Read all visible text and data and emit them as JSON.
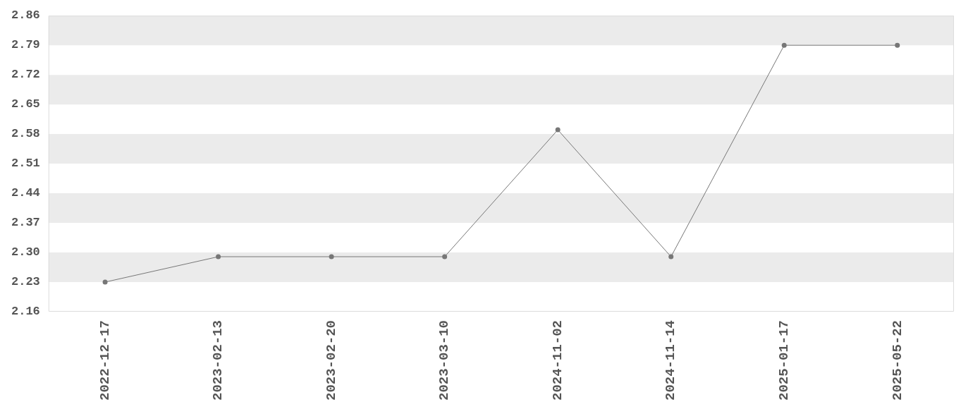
{
  "chart_data": {
    "type": "line",
    "categories": [
      "2022-12-17",
      "2023-02-13",
      "2023-02-20",
      "2023-03-10",
      "2024-11-02",
      "2024-11-14",
      "2025-01-17",
      "2025-05-22"
    ],
    "series": [
      {
        "color": "#777777",
        "values": [
          2.23,
          2.29,
          2.29,
          2.29,
          2.59,
          2.29,
          2.79,
          2.79
        ]
      }
    ],
    "ylim": [
      2.16,
      2.86
    ],
    "yticks": [
      2.16,
      2.23,
      {
        "value": 2.3,
        "label": "2.30"
      },
      2.37,
      2.44,
      2.51,
      2.58,
      2.65,
      2.72,
      2.79,
      2.86
    ],
    "bands": [
      {
        "axis": "y",
        "from": 2.23,
        "to": 2.3,
        "color": "#ebebeb"
      },
      {
        "axis": "y",
        "from": 2.37,
        "to": 2.44,
        "color": "#ebebeb"
      },
      {
        "axis": "y",
        "from": 2.51,
        "to": 2.58,
        "color": "#ebebeb"
      },
      {
        "axis": "y",
        "from": 2.65,
        "to": 2.72,
        "color": "#ebebeb"
      },
      {
        "axis": "y",
        "from": 2.79,
        "to": 2.86,
        "color": "#ebebeb"
      }
    ],
    "legend": false,
    "marker": "circle",
    "line_style": "solid"
  }
}
